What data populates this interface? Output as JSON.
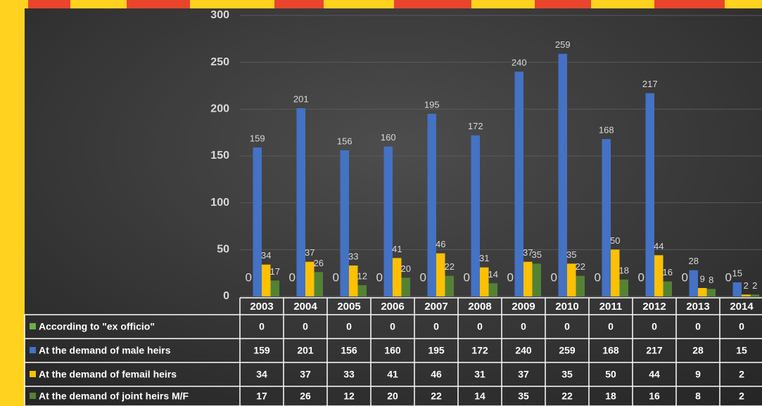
{
  "chart_data": {
    "type": "bar",
    "categories": [
      "2003",
      "2004",
      "2005",
      "2006",
      "2007",
      "2008",
      "2009",
      "2010",
      "2011",
      "2012",
      "2013",
      "2014"
    ],
    "series": [
      {
        "name": "According to \"ex officio\"",
        "color": "#70ad47",
        "values": [
          0,
          0,
          0,
          0,
          0,
          0,
          0,
          0,
          0,
          0,
          0,
          0
        ]
      },
      {
        "name": "At the demand of male heirs",
        "color": "#4472c4",
        "values": [
          159,
          201,
          156,
          160,
          195,
          172,
          240,
          259,
          168,
          217,
          28,
          15
        ]
      },
      {
        "name": "At the demand of femail heirs",
        "color": "#ffc000",
        "values": [
          34,
          37,
          33,
          41,
          46,
          31,
          37,
          35,
          50,
          44,
          9,
          2
        ]
      },
      {
        "name": "At the demand of joint heirs M/F",
        "color": "#548235",
        "values": [
          17,
          26,
          12,
          20,
          22,
          14,
          35,
          22,
          18,
          16,
          8,
          2
        ]
      }
    ],
    "ylim": [
      0,
      300
    ],
    "yticks": [
      0,
      50,
      100,
      150,
      200,
      250,
      300
    ],
    "grid": true
  }
}
